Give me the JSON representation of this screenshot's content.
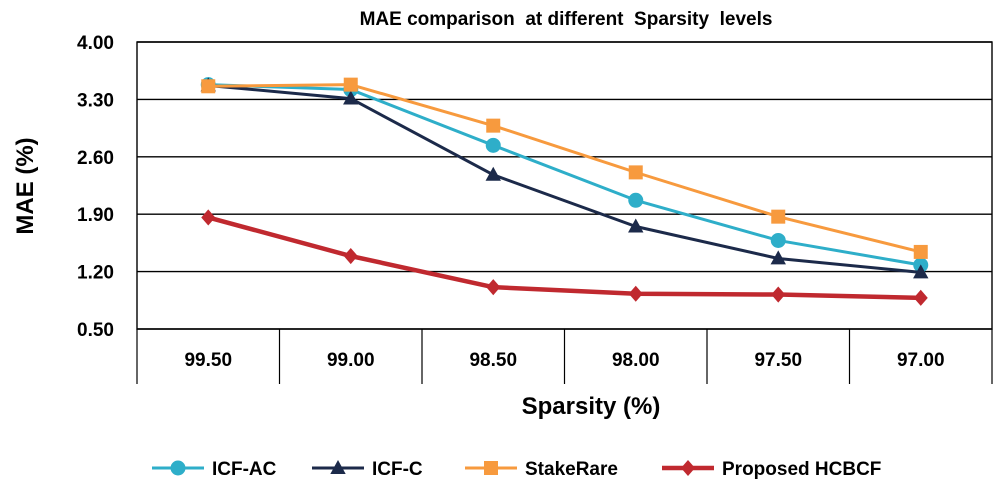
{
  "chart_data": {
    "type": "line",
    "title": "MAE comparison  at different  Sparsity  levels",
    "xlabel": "Sparsity (%)",
    "ylabel": "MAE (%)",
    "categories": [
      "99.50",
      "99.00",
      "98.50",
      "98.00",
      "97.50",
      "97.00"
    ],
    "yticks": [
      "4.00",
      "3.30",
      "2.60",
      "1.90",
      "1.20",
      "0.50"
    ],
    "ylim": [
      0.5,
      4.0
    ],
    "grid": true,
    "legend_position": "bottom",
    "series": [
      {
        "name": "ICF-AC",
        "color": "#2eaec9",
        "marker": "circle",
        "values": [
          3.48,
          3.42,
          2.74,
          2.07,
          1.58,
          1.28
        ]
      },
      {
        "name": "ICF-C",
        "color": "#1c2a4a",
        "marker": "triangle",
        "values": [
          3.47,
          3.31,
          2.38,
          1.75,
          1.36,
          1.19
        ]
      },
      {
        "name": "StakeRare",
        "color": "#f79a3e",
        "marker": "square",
        "values": [
          3.46,
          3.48,
          2.98,
          2.41,
          1.87,
          1.44
        ]
      },
      {
        "name": "Proposed HCBCF",
        "color": "#c0292f",
        "marker": "diamond",
        "values": [
          1.86,
          1.39,
          1.01,
          0.93,
          0.92,
          0.88
        ]
      }
    ]
  }
}
